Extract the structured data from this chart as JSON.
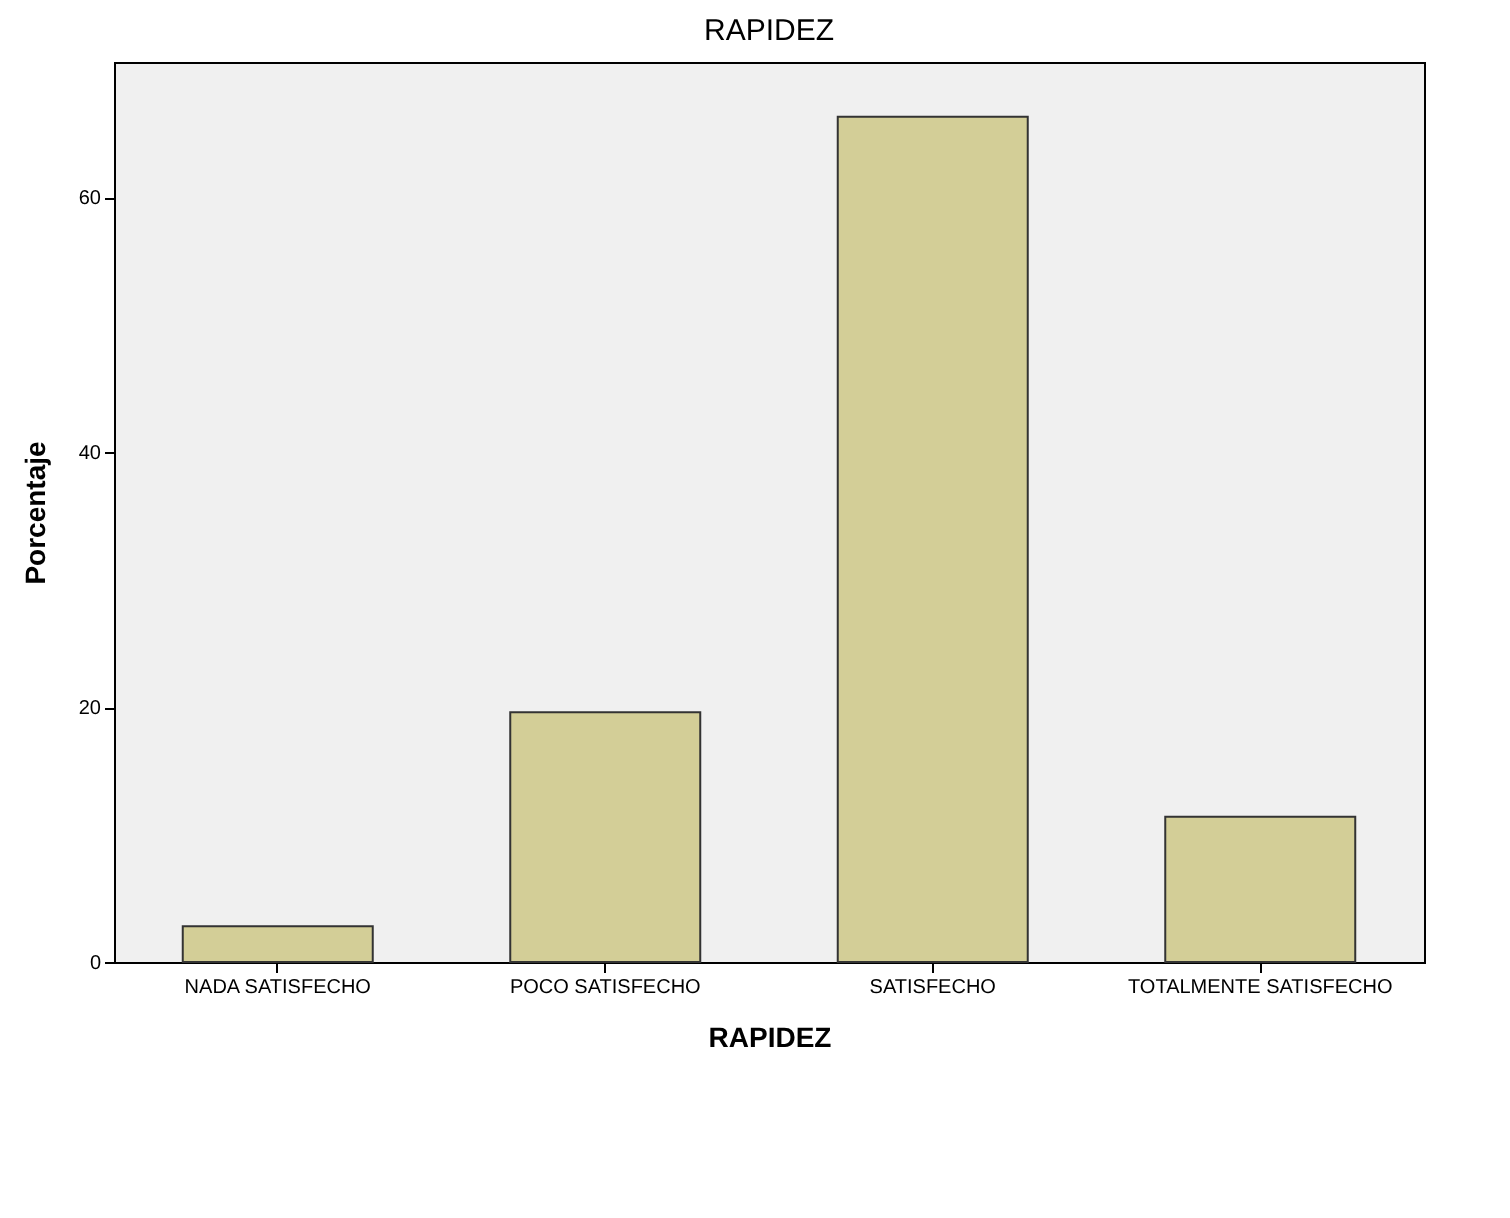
{
  "chart_data": {
    "type": "bar",
    "title": "RAPIDEZ",
    "xlabel": "RAPIDEZ",
    "ylabel": "Porcentaje",
    "categories": [
      "NADA SATISFECHO",
      "POCO SATISFECHO",
      "SATISFECHO",
      "TOTALMENTE SATISFECHO"
    ],
    "values": [
      2.8,
      19.6,
      66.3,
      11.4
    ],
    "color": "#d3ce97",
    "ylim": [
      0,
      70.6
    ],
    "yticks": [
      0,
      20,
      40,
      60
    ],
    "grid": false
  }
}
